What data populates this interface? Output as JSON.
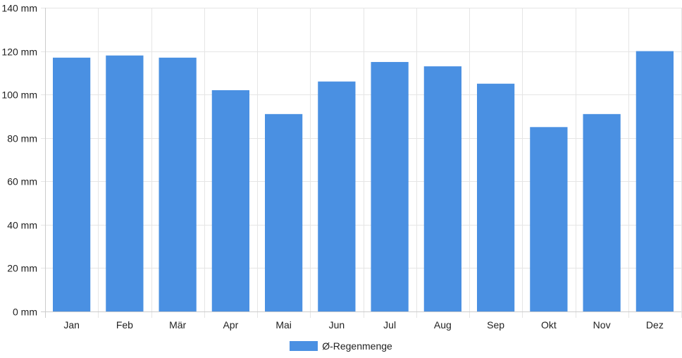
{
  "chart_data": {
    "type": "bar",
    "categories": [
      "Jan",
      "Feb",
      "Mär",
      "Apr",
      "Mai",
      "Jun",
      "Jul",
      "Aug",
      "Sep",
      "Okt",
      "Nov",
      "Dez"
    ],
    "series": [
      {
        "name": "Ø-Regenmenge",
        "values": [
          117,
          118,
          117,
          102,
          91,
          106,
          115,
          113,
          105,
          85,
          91,
          120
        ],
        "color": "#4a90e2"
      }
    ],
    "ylim": [
      0,
      140
    ],
    "yticks": [
      0,
      20,
      40,
      60,
      80,
      100,
      120,
      140
    ],
    "ytick_labels": [
      "0 mm",
      "20 mm",
      "40 mm",
      "60 mm",
      "80 mm",
      "100 mm",
      "120 mm",
      "140 mm"
    ],
    "grid": true,
    "legend_position": "bottom-center",
    "title": "",
    "xlabel": "",
    "ylabel": ""
  }
}
